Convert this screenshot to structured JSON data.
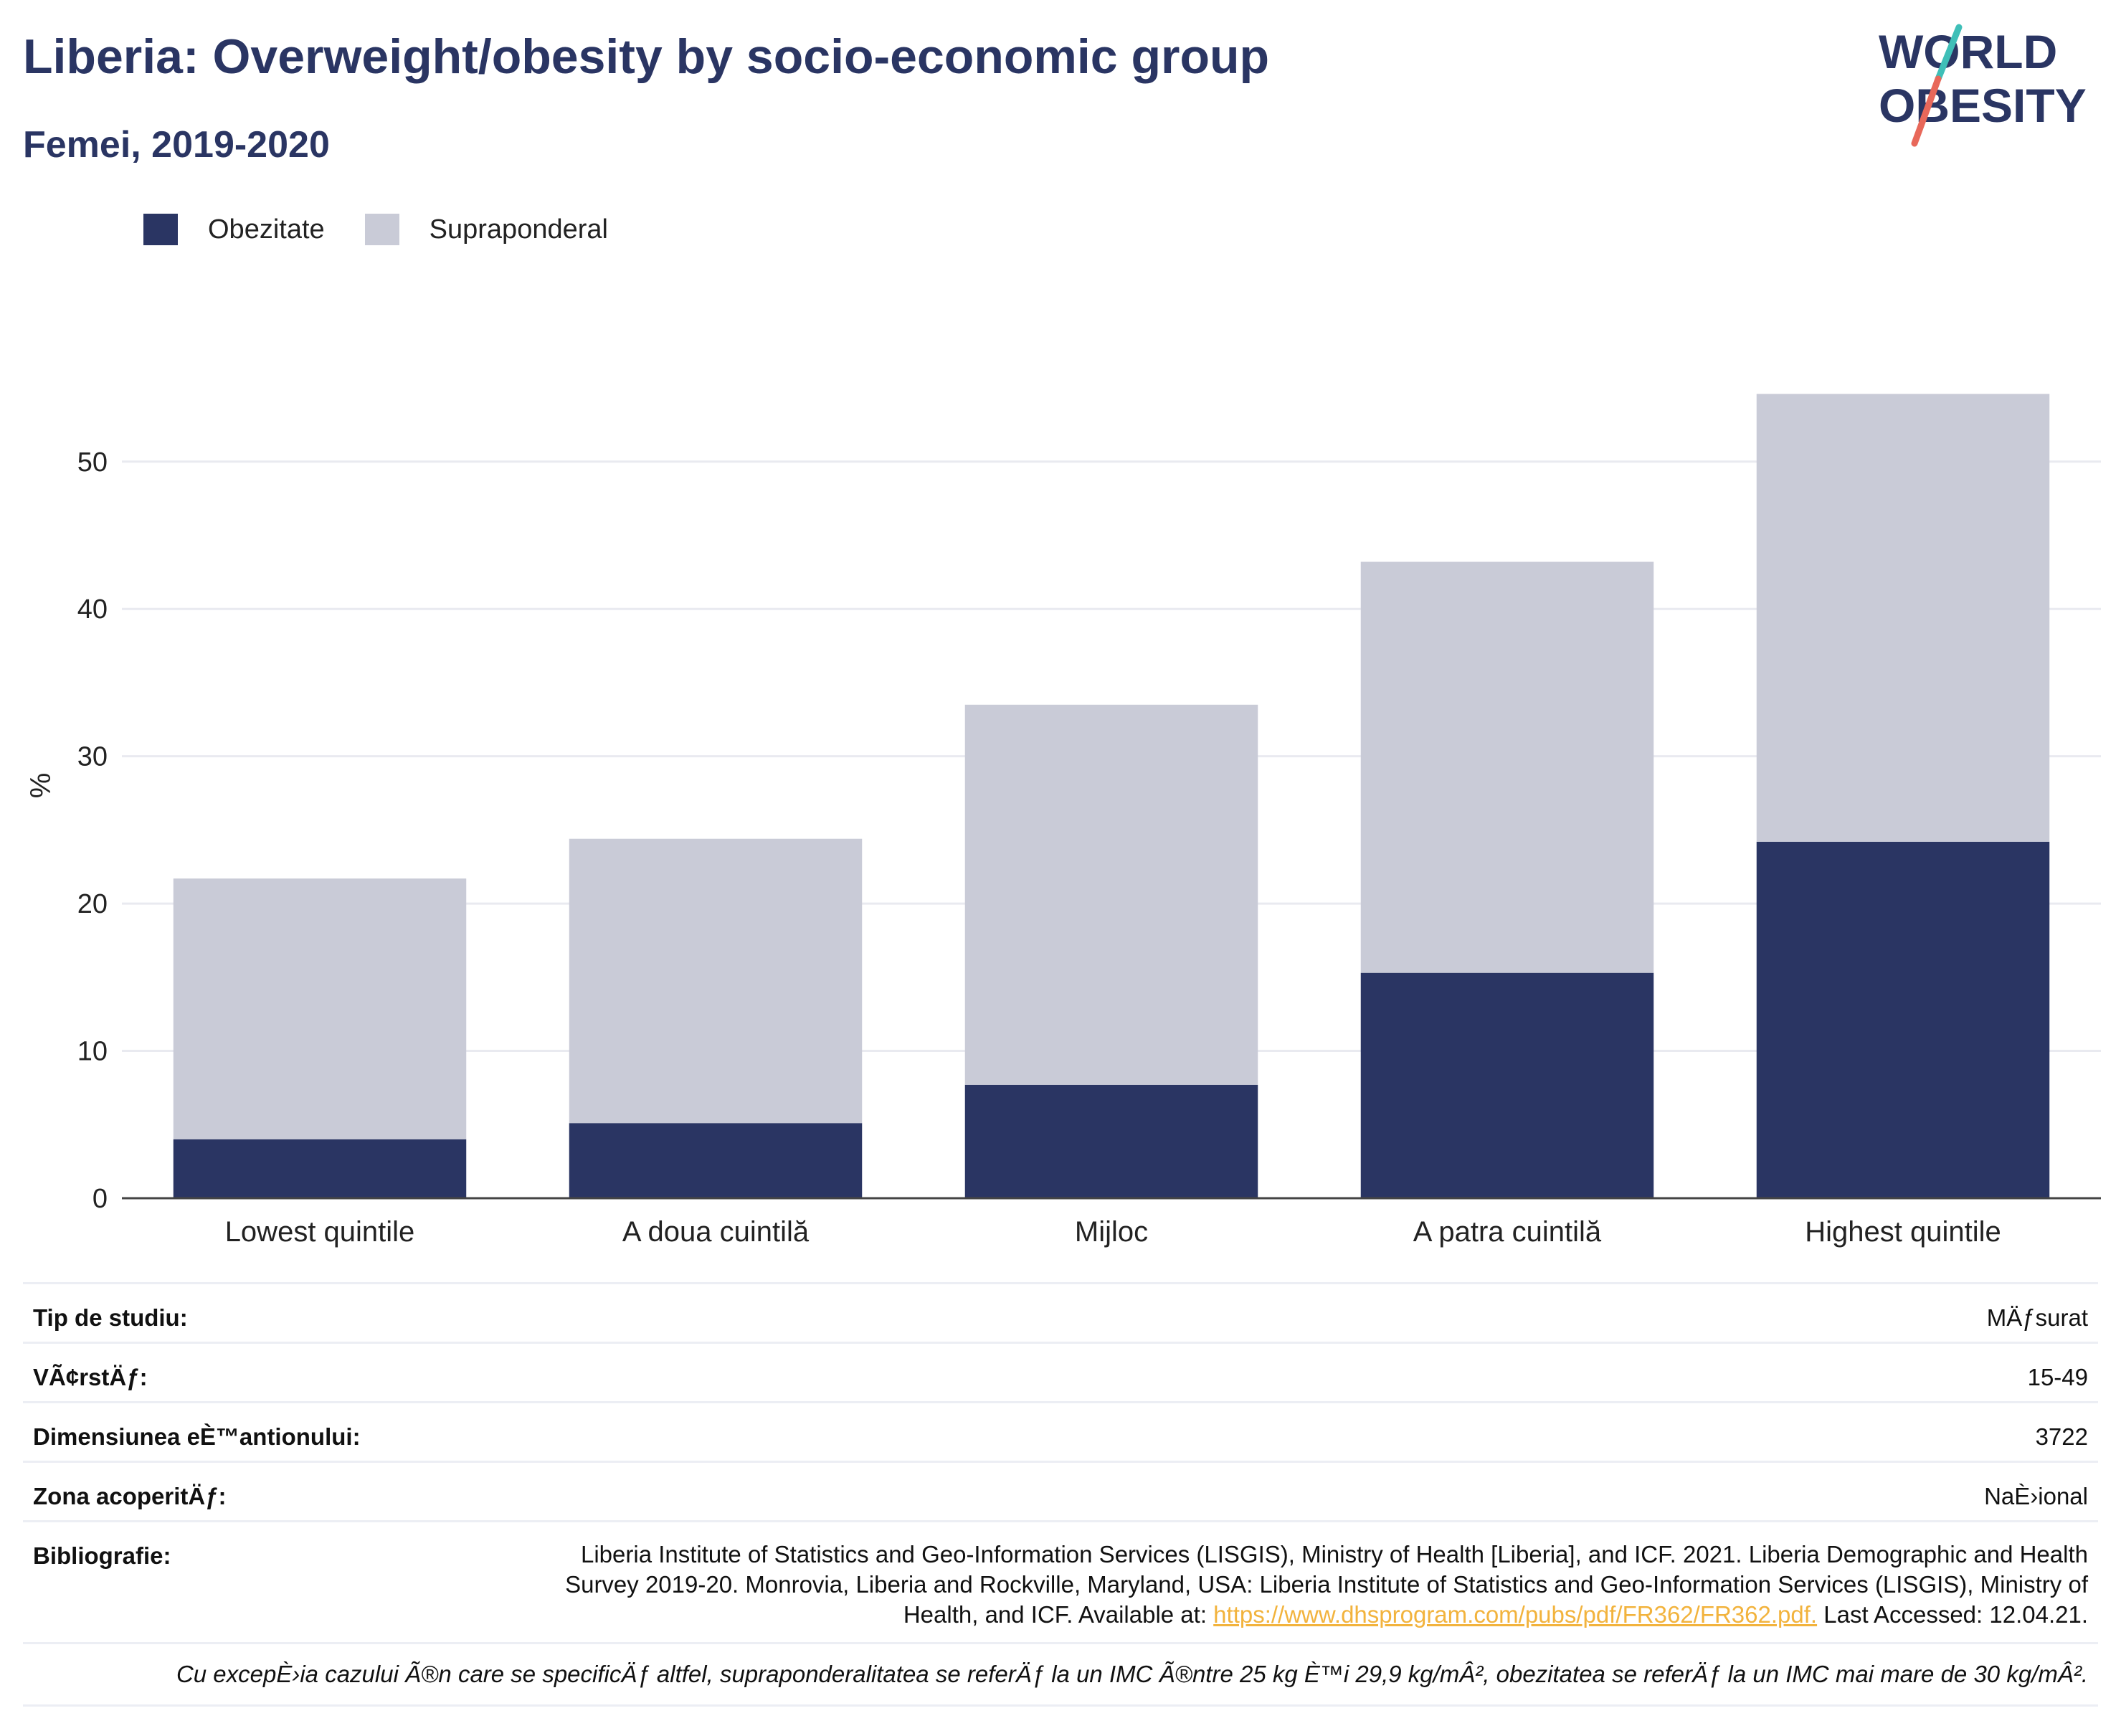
{
  "header": {
    "title": "Liberia: Overweight/obesity by socio-economic group",
    "subtitle": "Femei, 2019-2020"
  },
  "logo": {
    "line1": "WORLD",
    "line2": "OBESITY",
    "colors": {
      "text": "#2a3563",
      "slash_top": "#3fbfb8",
      "slash_bottom": "#e8685a"
    }
  },
  "legend": [
    {
      "label": "Obezitate",
      "color": "#2a3563"
    },
    {
      "label": "Supraponderal",
      "color": "#c9cbd7"
    }
  ],
  "chart_data": {
    "type": "bar",
    "stacked": true,
    "categories": [
      "Lowest quintile",
      "A doua cuintilă",
      "Mijloc",
      "A patra cuintilă",
      "Highest quintile"
    ],
    "series": [
      {
        "name": "Obezitate",
        "color": "#2a3563",
        "values": [
          4.0,
          5.1,
          7.7,
          15.3,
          24.2
        ]
      },
      {
        "name": "Supraponderal",
        "color": "#c9cbd7",
        "values": [
          17.7,
          19.3,
          25.8,
          27.9,
          30.4
        ]
      }
    ],
    "ylabel": "%",
    "ylim": [
      0,
      57
    ],
    "yticks": [
      0,
      10,
      20,
      30,
      40,
      50
    ],
    "grid": true
  },
  "meta": {
    "rows": [
      {
        "label": "Tip de studiu:",
        "value": "MÄƒsurat"
      },
      {
        "label": "VÃ¢rstÄƒ:",
        "value": "15-49"
      },
      {
        "label": "Dimensiunea eÈ™antionului:",
        "value": "3722"
      },
      {
        "label": "Zona acoperitÄƒ:",
        "value": "NaÈ›ional"
      }
    ],
    "bibliography": {
      "label": "Bibliografie:",
      "text_before": "Liberia Institute of Statistics and Geo-Information Services (LISGIS), Ministry of Health [Liberia], and ICF. 2021. Liberia Demographic and Health Survey 2019-20. Monrovia, Liberia and Rockville, Maryland, USA: Liberia Institute of Statistics and Geo-Information Services (LISGIS), Ministry of Health, and ICF. Available at: ",
      "link": "https://www.dhsprogram.com/pubs/pdf/FR362/FR362.pdf.",
      "text_after": " Last Accessed: 12.04.21."
    }
  },
  "footnote": "Cu excepÈ›ia cazului Ã®n care se specificÄƒ altfel, supraponderalitatea se referÄƒ la un IMC Ã®ntre 25 kg È™i 29,9 kg/mÂ², obezitatea se referÄƒ la un IMC mai mare de 30 kg/mÂ²."
}
